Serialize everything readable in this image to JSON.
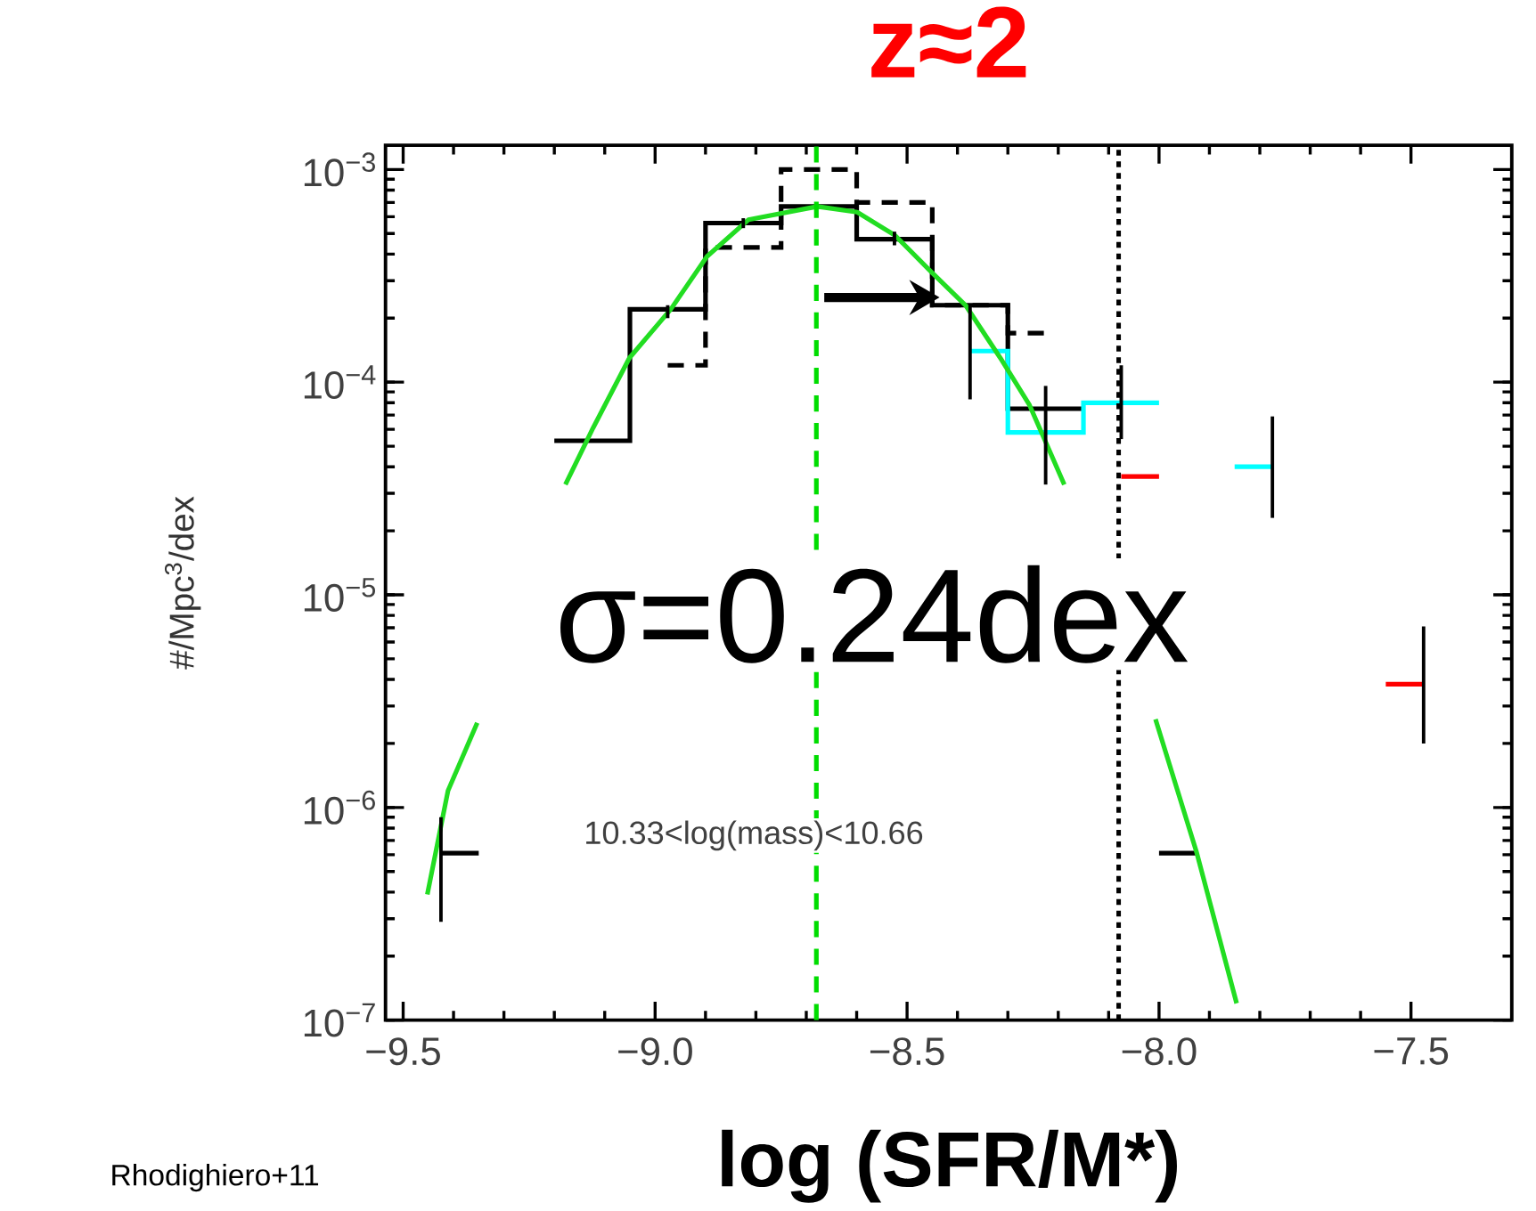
{
  "chart_data": {
    "type": "step",
    "title": "z≈2",
    "xlabel": "log (SFR/M*)",
    "ylabel": "#/Mpc$^{3}$/dex",
    "log": "y",
    "xlim": [
      -9.535,
      -7.3
    ],
    "ylim": [
      1e-07,
      0.0013
    ],
    "xticks": [
      {
        "value": -9.5,
        "label": "−9.5"
      },
      {
        "value": -9.0,
        "label": "−9.0"
      },
      {
        "value": -8.5,
        "label": "−8.5"
      },
      {
        "value": -8.0,
        "label": "−8.0"
      },
      {
        "value": -7.5,
        "label": "−7.5"
      }
    ],
    "yticks": [
      {
        "value": 1e-07,
        "label": "10$^{−7}$"
      },
      {
        "value": 1e-06,
        "label": "10$^{−6}$"
      },
      {
        "value": 1e-05,
        "label": "10$^{−5}$"
      },
      {
        "value": 0.0001,
        "label": "10$^{−4}$"
      },
      {
        "value": 0.001,
        "label": "10$^{−3}$"
      }
    ],
    "series": [
      {
        "color": "#000000",
        "line_style": "solid",
        "x": [
          -9.425,
          -9.275,
          -9.125,
          -8.975,
          -8.825,
          -8.675,
          -8.525,
          -8.375,
          -8.225,
          -8.075,
          -7.925
        ],
        "values": [
          6.1e-07,
          null,
          5.3e-05,
          0.00022,
          0.00056,
          0.00067,
          0.00047,
          0.00023,
          7.5e-05,
          null,
          6.1e-07
        ],
        "errors": [
          [
            2.9e-07,
            9e-07
          ],
          null,
          null,
          [
            0.0002,
            0.00023
          ],
          [
            0.00053,
            0.00059
          ],
          null,
          [
            0.00044,
            0.00051
          ],
          null,
          null,
          null,
          null
        ]
      },
      {
        "color": "#000000",
        "line_style": "dashed",
        "x": [
          -8.975,
          -8.825,
          -8.675,
          -8.525,
          -8.375,
          -8.225
        ],
        "values": [
          0.00012,
          0.00043,
          0.001,
          0.0007,
          0.00023,
          0.00017
        ]
      },
      {
        "color": "#00ffff",
        "line_style": "solid",
        "x": [
          -8.375,
          -8.225,
          -8.075,
          -7.925,
          -7.775
        ],
        "values": [
          0.00014,
          5.8e-05,
          8e-05,
          null,
          4e-05
        ],
        "errors": [
          [
            8.3e-05,
            0.00023
          ],
          [
            3.3e-05,
            9.6e-05
          ],
          [
            5.4e-05,
            0.00012
          ],
          null,
          [
            2.3e-05,
            6.9e-05
          ]
        ]
      },
      {
        "color": "#ff0000",
        "line_style": "solid",
        "x": [
          -8.075,
          -7.925,
          -7.775,
          -7.625,
          -7.475
        ],
        "values": [
          3.6e-05,
          null,
          null,
          null,
          3.8e-06
        ],
        "errors": [
          null,
          null,
          null,
          null,
          [
            2e-06,
            7.1e-06
          ]
        ]
      },
      {
        "type": "line",
        "color": "#22dd22",
        "line_style": "solid",
        "x": [
          -9.452,
          -9.411,
          -9.353,
          -9.26,
          -9.178,
          -9.123,
          -9.051,
          -8.969,
          -8.897,
          -8.815,
          -8.678,
          -8.599,
          -8.524,
          -8.452,
          -8.384,
          -8.315,
          -8.257,
          -8.188,
          -8.1,
          -8.007,
          -7.925,
          -7.846
        ],
        "values": [
          3.9e-07,
          1.2e-06,
          2.5e-06,
          null,
          3.3e-05,
          6.1e-05,
          0.00013,
          0.00022,
          0.00039,
          0.00058,
          0.00067,
          0.00063,
          0.00049,
          0.00033,
          0.00023,
          0.00013,
          7.8e-05,
          3.3e-05,
          null,
          2.6e-06,
          6.1e-07,
          1.2e-07
        ]
      }
    ],
    "ref_lines": [
      {
        "axis": "x",
        "value": -8.68,
        "color": "#00dd00",
        "line_style": "dashed"
      },
      {
        "axis": "x",
        "value": -8.08,
        "color": "#000000",
        "line_style": "dotted"
      }
    ],
    "annotations": [
      "σ=0.24dex",
      "10.33<log(mass)<10.66",
      "Rhodighiero+11"
    ]
  }
}
